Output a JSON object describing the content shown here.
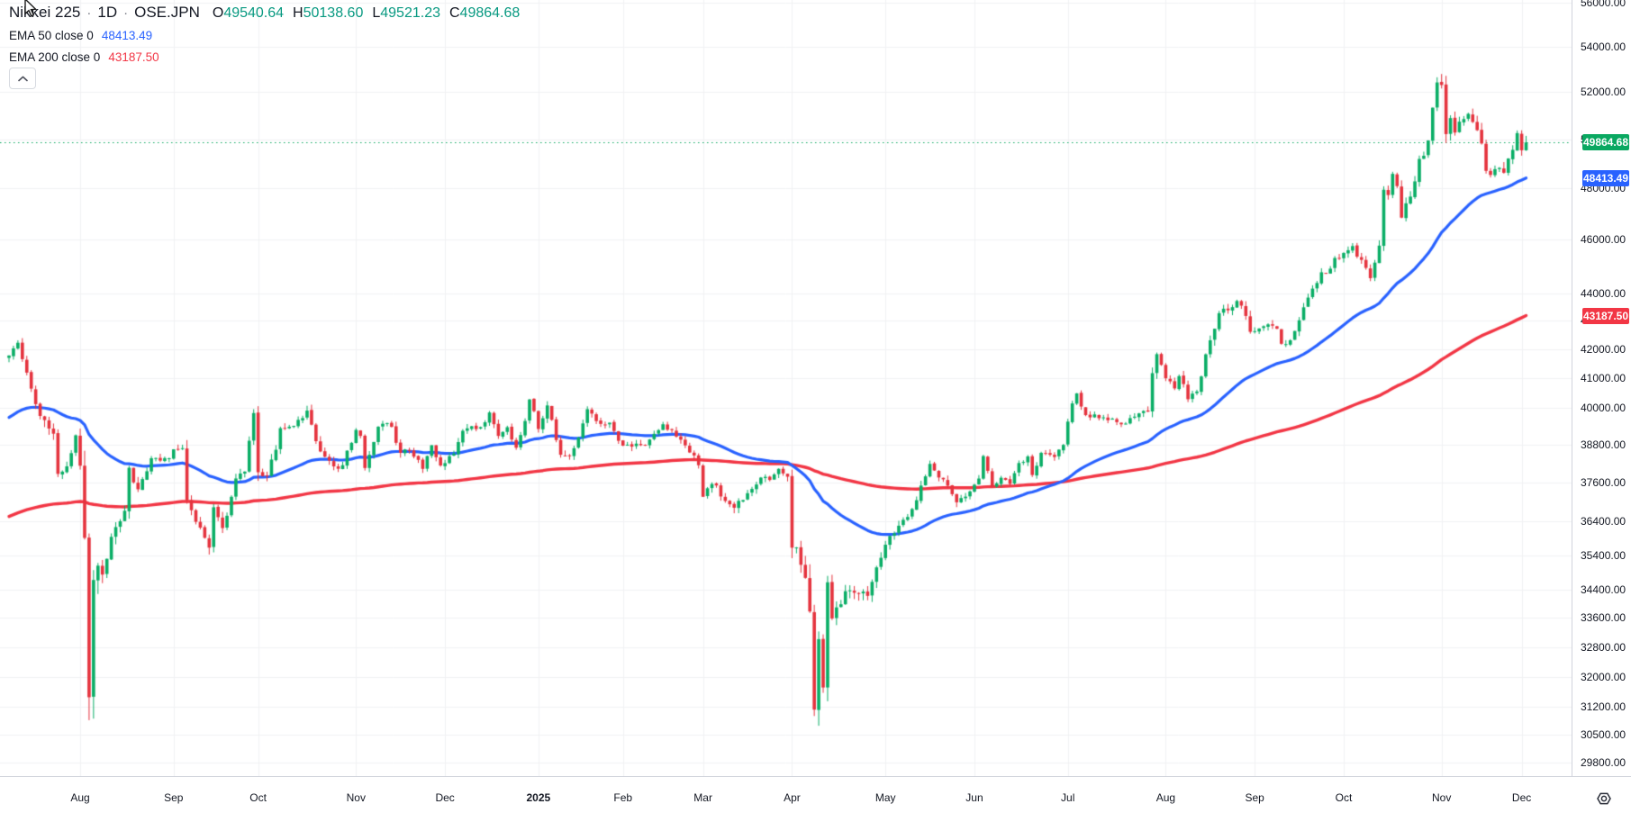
{
  "header": {
    "symbol_title": "Nikkei 225",
    "separator": "·",
    "interval": "1D",
    "exchange": "OSE.JPN",
    "ohlc": {
      "o_label": "O",
      "o": "49540.64",
      "h_label": "H",
      "h": "50138.60",
      "l_label": "L",
      "l": "49521.23",
      "c_label": "C",
      "c": "49864.68"
    },
    "indicators": [
      {
        "name": "EMA 50 close 0",
        "value": "48413.49",
        "color": "#2962ff"
      },
      {
        "name": "EMA 200 close 0",
        "value": "43187.50",
        "color": "#f23645"
      }
    ]
  },
  "price_axis": {
    "badges": [
      {
        "label": "49864.68",
        "price": 49864.68,
        "color": "#0aa861"
      },
      {
        "label": "48413.49",
        "price": 48413.49,
        "color": "#2962ff"
      },
      {
        "label": "43187.50",
        "price": 43187.5,
        "color": "#f23645"
      }
    ]
  },
  "chart_data": {
    "type": "candlestick",
    "title": "Nikkei 225 1D OSE.JPN",
    "scale": "log",
    "grid": true,
    "legend_position": "top-left",
    "up_color": "#0aae66",
    "down_color": "#e5333e",
    "last_price_line_color": "#0aa861",
    "ylim_log": [
      29465,
      56125
    ],
    "bars_total": 342,
    "price_ticks": [
      56000,
      54000,
      52000,
      50000,
      48000,
      46000,
      44000,
      43000,
      42000,
      41000,
      40000,
      38800,
      37600,
      36400,
      35400,
      34400,
      33600,
      32800,
      32000,
      31200,
      30500,
      29800
    ],
    "x_axis_labels": [
      {
        "text": "Aug",
        "day": 16
      },
      {
        "text": "Sep",
        "day": 37
      },
      {
        "text": "Oct",
        "day": 56
      },
      {
        "text": "Nov",
        "day": 78
      },
      {
        "text": "Dec",
        "day": 98
      },
      {
        "text": "2025",
        "day": 119,
        "year": true
      },
      {
        "text": "Feb",
        "day": 138
      },
      {
        "text": "Mar",
        "day": 156
      },
      {
        "text": "Apr",
        "day": 176
      },
      {
        "text": "May",
        "day": 197
      },
      {
        "text": "Jun",
        "day": 217
      },
      {
        "text": "Jul",
        "day": 238
      },
      {
        "text": "Aug",
        "day": 260
      },
      {
        "text": "Sep",
        "day": 280
      },
      {
        "text": "Oct",
        "day": 300
      },
      {
        "text": "Nov",
        "day": 322
      },
      {
        "text": "Dec",
        "day": 340
      }
    ],
    "last_candle": {
      "open": 49540.64,
      "high": 50138.6,
      "low": 49521.23,
      "close": 49864.68
    },
    "last_price": 49864.68,
    "series": [
      {
        "name": "EMA 50",
        "period": 50,
        "color": "#2962ff",
        "seed": 39600,
        "end": 48413.49,
        "width": 3.2
      },
      {
        "name": "EMA 200",
        "period": 200,
        "color": "#f23645",
        "seed": 36500,
        "end": 43187.5,
        "width": 3.4
      }
    ],
    "anchors": [
      [
        0,
        41780,
        0.9
      ],
      [
        2,
        42224,
        0.8
      ],
      [
        4,
        41190,
        1.0
      ],
      [
        6,
        40126,
        1.3
      ],
      [
        8,
        39599,
        1.3
      ],
      [
        10,
        39154,
        1.2
      ],
      [
        11,
        37869,
        1.6
      ],
      [
        13,
        38106,
        1.3
      ],
      [
        14,
        38526,
        1.2
      ],
      [
        15,
        39101,
        1.6
      ],
      [
        16,
        38126,
        2.0
      ],
      [
        17,
        35909,
        3.0
      ],
      [
        18,
        31458,
        5.2
      ],
      [
        19,
        34675,
        4.2
      ],
      [
        20,
        35090,
        2.6
      ],
      [
        21,
        34831,
        2.0
      ],
      [
        24,
        36232,
        1.7
      ],
      [
        26,
        36726,
        1.4
      ],
      [
        27,
        38062,
        1.4
      ],
      [
        29,
        37388,
        1.2
      ],
      [
        31,
        37951,
        1.0
      ],
      [
        32,
        38364,
        1.0
      ],
      [
        34,
        38288,
        0.9
      ],
      [
        36,
        38362,
        0.9
      ],
      [
        37,
        38648,
        0.9
      ],
      [
        39,
        38686,
        0.9
      ],
      [
        40,
        37047,
        1.6
      ],
      [
        42,
        36391,
        1.2
      ],
      [
        43,
        36215,
        1.1
      ],
      [
        45,
        35619,
        1.4
      ],
      [
        46,
        36833,
        1.2
      ],
      [
        48,
        36203,
        1.1
      ],
      [
        50,
        37155,
        1.0
      ],
      [
        51,
        37724,
        0.9
      ],
      [
        53,
        37940,
        0.9
      ],
      [
        54,
        38925,
        1.0
      ],
      [
        55,
        39830,
        0.9
      ],
      [
        56,
        37920,
        1.9
      ],
      [
        58,
        37808,
        1.1
      ],
      [
        60,
        38635,
        1.0
      ],
      [
        61,
        39333,
        1.0
      ],
      [
        63,
        39381,
        0.8
      ],
      [
        65,
        39606,
        0.8
      ],
      [
        67,
        39911,
        0.9
      ],
      [
        69,
        38911,
        1.1
      ],
      [
        71,
        38412,
        0.9
      ],
      [
        73,
        38105,
        0.9
      ],
      [
        75,
        38143,
        0.8
      ],
      [
        76,
        38606,
        0.8
      ],
      [
        78,
        39277,
        0.8
      ],
      [
        79,
        39081,
        0.9
      ],
      [
        80,
        38054,
        1.1
      ],
      [
        81,
        38475,
        1.0
      ],
      [
        83,
        39381,
        0.9
      ],
      [
        85,
        39500,
        0.8
      ],
      [
        86,
        39376,
        0.8
      ],
      [
        88,
        38535,
        1.0
      ],
      [
        89,
        38643,
        0.8
      ],
      [
        91,
        38414,
        0.9
      ],
      [
        93,
        38026,
        0.9
      ],
      [
        95,
        38780,
        0.8
      ],
      [
        97,
        38134,
        0.9
      ],
      [
        98,
        38208,
        0.8
      ],
      [
        100,
        38513,
        0.8
      ],
      [
        102,
        39248,
        0.9
      ],
      [
        104,
        39396,
        0.7
      ],
      [
        106,
        39367,
        0.7
      ],
      [
        108,
        39849,
        0.8
      ],
      [
        110,
        39081,
        0.9
      ],
      [
        112,
        39364,
        0.7
      ],
      [
        114,
        38701,
        0.9
      ],
      [
        116,
        39568,
        0.7
      ],
      [
        117,
        40281,
        0.8
      ],
      [
        118,
        39895,
        0.7
      ],
      [
        119,
        39307,
        0.9
      ],
      [
        121,
        40083,
        0.9
      ],
      [
        122,
        39605,
        0.8
      ],
      [
        124,
        38474,
        1.1
      ],
      [
        126,
        38451,
        0.8
      ],
      [
        128,
        39027,
        0.8
      ],
      [
        130,
        39958,
        0.8
      ],
      [
        132,
        39566,
        0.8
      ],
      [
        135,
        39513,
        0.7
      ],
      [
        137,
        38923,
        0.9
      ],
      [
        139,
        38798,
        0.9
      ],
      [
        141,
        38831,
        0.8
      ],
      [
        143,
        38787,
        0.8
      ],
      [
        145,
        39149,
        0.7
      ],
      [
        147,
        39461,
        0.7
      ],
      [
        149,
        39270,
        0.7
      ],
      [
        152,
        38776,
        0.8
      ],
      [
        154,
        38452,
        0.8
      ],
      [
        155,
        38142,
        0.9
      ],
      [
        156,
        37156,
        1.3
      ],
      [
        157,
        37418,
        1.0
      ],
      [
        159,
        37505,
        0.9
      ],
      [
        161,
        37028,
        1.1
      ],
      [
        163,
        36819,
        1.1
      ],
      [
        165,
        37053,
        1.0
      ],
      [
        167,
        37397,
        0.9
      ],
      [
        169,
        37752,
        0.8
      ],
      [
        171,
        37677,
        0.8
      ],
      [
        173,
        38027,
        0.8
      ],
      [
        175,
        37780,
        0.9
      ],
      [
        176,
        35618,
        2.0
      ],
      [
        177,
        35624,
        1.4
      ],
      [
        179,
        34736,
        1.9
      ],
      [
        180,
        33781,
        2.6
      ],
      [
        181,
        31137,
        4.8
      ],
      [
        182,
        33013,
        3.6
      ],
      [
        183,
        31714,
        3.2
      ],
      [
        184,
        34609,
        3.6
      ],
      [
        185,
        33586,
        2.6
      ],
      [
        187,
        33983,
        2.0
      ],
      [
        189,
        34378,
        1.5
      ],
      [
        191,
        34280,
        1.3
      ],
      [
        193,
        34221,
        1.3
      ],
      [
        195,
        35040,
        1.2
      ],
      [
        197,
        35706,
        1.2
      ],
      [
        199,
        36045,
        1.0
      ],
      [
        201,
        36452,
        0.9
      ],
      [
        203,
        36779,
        0.9
      ],
      [
        205,
        37503,
        0.9
      ],
      [
        207,
        38183,
        0.8
      ],
      [
        209,
        37755,
        0.8
      ],
      [
        211,
        37499,
        0.9
      ],
      [
        213,
        36986,
        0.9
      ],
      [
        215,
        37160,
        0.8
      ],
      [
        217,
        37531,
        0.8
      ],
      [
        218,
        37722,
        0.8
      ],
      [
        219,
        38433,
        0.8
      ],
      [
        220,
        37965,
        0.8
      ],
      [
        221,
        37470,
        0.9
      ],
      [
        223,
        37747,
        0.7
      ],
      [
        225,
        37554,
        0.7
      ],
      [
        227,
        38211,
        0.7
      ],
      [
        229,
        38421,
        0.7
      ],
      [
        230,
        37834,
        1.0
      ],
      [
        232,
        38536,
        0.8
      ],
      [
        235,
        38403,
        0.7
      ],
      [
        237,
        38790,
        0.8
      ],
      [
        239,
        40150,
        1.1
      ],
      [
        240,
        40487,
        0.8
      ],
      [
        242,
        39762,
        0.8
      ],
      [
        244,
        39786,
        0.7
      ],
      [
        246,
        39688,
        0.7
      ],
      [
        248,
        39646,
        0.7
      ],
      [
        250,
        39459,
        0.8
      ],
      [
        252,
        39663,
        0.7
      ],
      [
        254,
        39819,
        0.8
      ],
      [
        256,
        39875,
        0.9
      ],
      [
        257,
        41171,
        1.5
      ],
      [
        258,
        41826,
        1.2
      ],
      [
        259,
        41456,
        1.0
      ],
      [
        260,
        40998,
        0.9
      ],
      [
        262,
        40654,
        0.8
      ],
      [
        263,
        41070,
        0.8
      ],
      [
        264,
        40800,
        0.9
      ],
      [
        265,
        40290,
        1.1
      ],
      [
        267,
        40549,
        0.9
      ],
      [
        268,
        41059,
        0.8
      ],
      [
        269,
        41820,
        0.9
      ],
      [
        271,
        42718,
        1.2
      ],
      [
        272,
        43274,
        1.0
      ],
      [
        274,
        43378,
        0.9
      ],
      [
        276,
        43714,
        0.9
      ],
      [
        277,
        43546,
        0.9
      ],
      [
        279,
        42610,
        1.1
      ],
      [
        280,
        42633,
        0.9
      ],
      [
        282,
        42807,
        0.8
      ],
      [
        284,
        42828,
        0.9
      ],
      [
        285,
        42718,
        0.8
      ],
      [
        286,
        42189,
        0.9
      ],
      [
        288,
        42310,
        0.8
      ],
      [
        290,
        43019,
        0.9
      ],
      [
        292,
        43837,
        0.9
      ],
      [
        294,
        44372,
        0.9
      ],
      [
        295,
        44768,
        0.8
      ],
      [
        297,
        44902,
        0.8
      ],
      [
        298,
        45303,
        0.9
      ],
      [
        300,
        45493,
        0.8
      ],
      [
        302,
        45754,
        0.8
      ],
      [
        303,
        45355,
        0.9
      ],
      [
        305,
        44933,
        0.9
      ],
      [
        306,
        44551,
        0.9
      ],
      [
        308,
        45770,
        1.1
      ],
      [
        309,
        47945,
        2.0
      ],
      [
        310,
        47734,
        1.3
      ],
      [
        311,
        48580,
        1.0
      ],
      [
        312,
        48089,
        1.2
      ],
      [
        313,
        46847,
        1.4
      ],
      [
        315,
        47672,
        1.1
      ],
      [
        316,
        48278,
        1.0
      ],
      [
        317,
        49186,
        1.3
      ],
      [
        318,
        49316,
        1.1
      ],
      [
        319,
        49945,
        1.2
      ],
      [
        320,
        51325,
        1.4
      ],
      [
        321,
        52411,
        1.4
      ],
      [
        322,
        52300,
        1.6
      ],
      [
        323,
        50212,
        2.2
      ],
      [
        324,
        50883,
        1.4
      ],
      [
        325,
        50276,
        1.3
      ],
      [
        327,
        50842,
        1.1
      ],
      [
        328,
        51063,
        1.2
      ],
      [
        330,
        50376,
        1.3
      ],
      [
        331,
        49823,
        1.4
      ],
      [
        332,
        48702,
        1.6
      ],
      [
        333,
        48537,
        1.4
      ],
      [
        335,
        48823,
        1.2
      ],
      [
        336,
        48625,
        1.2
      ],
      [
        338,
        49559,
        1.0
      ],
      [
        339,
        50253,
        1.0
      ],
      [
        340,
        49541,
        1.0
      ],
      [
        341,
        49864.68,
        0.7
      ]
    ]
  },
  "colors": {
    "text": "#131722",
    "muted": "#787b86",
    "grid": "#f1f2f4",
    "axis_border": "#d1d4dc",
    "legend_ohlc_value": "#089981",
    "ema50": "#2962ff",
    "ema200": "#f23645",
    "candle_up": "#0aae66",
    "candle_down": "#e5333e"
  }
}
